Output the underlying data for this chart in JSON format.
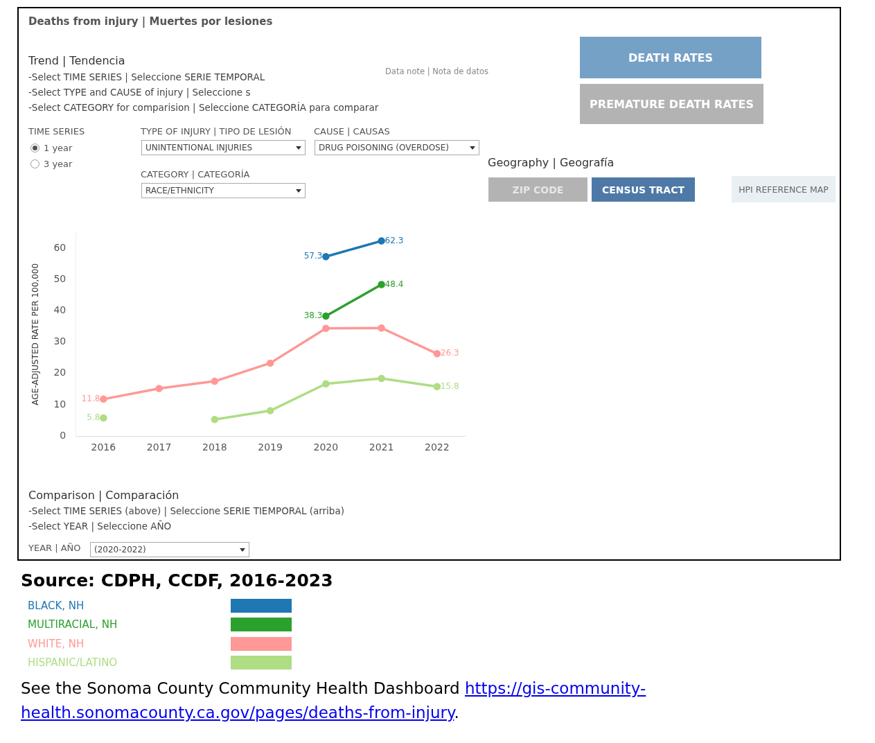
{
  "chart_data": {
    "type": "line",
    "title": "Deaths from injury | Muertes por lesiones",
    "ylabel": "AGE-ADJUSTED RATE PER 100,000",
    "categories": [
      "2016",
      "2017",
      "2018",
      "2019",
      "2020",
      "2021",
      "2022"
    ],
    "series": [
      {
        "name": "BLACK, NH",
        "color": "#1f77b4",
        "values": [
          null,
          null,
          null,
          null,
          57.3,
          62.3,
          null
        ],
        "value_labels": [
          null,
          null,
          null,
          null,
          "57.3",
          "62.3",
          null
        ]
      },
      {
        "name": "MULTIRACIAL, NH",
        "color": "#2ca02c",
        "values": [
          null,
          null,
          null,
          null,
          38.3,
          48.4,
          null
        ],
        "value_labels": [
          null,
          null,
          null,
          null,
          "38.3",
          "48.4",
          null
        ]
      },
      {
        "name": "WHITE, NH",
        "color": "#ff9896",
        "values": [
          11.8,
          15.2,
          17.5,
          23.3,
          34.4,
          34.5,
          26.3
        ],
        "value_labels": [
          "11.8",
          null,
          null,
          null,
          null,
          null,
          "26.3"
        ]
      },
      {
        "name": "HISPANIC/LATINO",
        "color": "#aedd84",
        "values": [
          5.8,
          null,
          5.3,
          8.1,
          16.7,
          18.4,
          15.8
        ],
        "value_labels": [
          "5.8",
          null,
          null,
          null,
          null,
          null,
          "15.8"
        ]
      }
    ],
    "ylim": [
      0,
      65
    ],
    "yticks": [
      0,
      10,
      20,
      30,
      40,
      50,
      60
    ],
    "grid": false,
    "marker": "circle",
    "legend": "bottom",
    "annotations": [
      "Trend | Tendencia",
      "-Select TIME SERIES | Seleccione SERIE TEMPORAL",
      "-Select TYPE and CAUSE of injury | Seleccione s",
      "-Select CATEGORY for comparision | Seleccione CATEGORÍA para comparar",
      "Data note | Nota de datos",
      "DEATH RATES",
      "PREMATURE DEATH RATES",
      "TIME SERIES",
      "1 year",
      "3 year",
      "TYPE OF INJURY | TIPO DE LESIÓN",
      "UNINTENTIONAL INJURIES",
      "CAUSE | CAUSAS",
      "DRUG POISONING (OVERDOSE)",
      "CATEGORY | CATEGORÍA",
      "RACE/ETHNICITY",
      "Geography | Geografía",
      "ZIP CODE",
      "CENSUS TRACT",
      "HPI REFERENCE MAP",
      "Comparison | Comparación",
      "-Select TIME SERIES (above) | Seleccione SERIE TIEMPORAL (arriba)",
      "-Select YEAR | Seleccione AÑO",
      "YEAR | AÑO",
      "(2020-2022)",
      "Source: CDPH, CCDF, 2016-2023",
      "See the Sonoma County Community Health Dashboard https://gis-community-health.sonomacounty.ca.gov/pages/deaths-from-injury."
    ]
  }
}
